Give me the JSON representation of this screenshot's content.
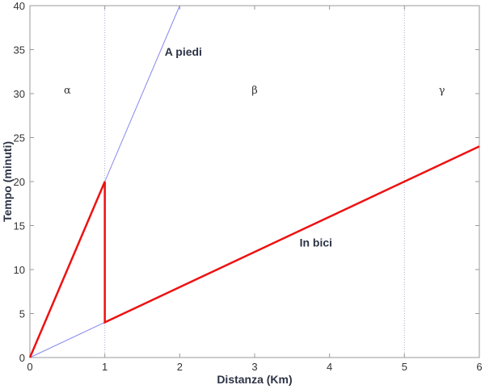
{
  "chart_data": {
    "type": "line",
    "title": "",
    "xlabel": "Distanza (Km)",
    "ylabel": "Tempo (minuti)",
    "xlim": [
      0,
      6
    ],
    "ylim": [
      0,
      40
    ],
    "xticks": [
      0,
      1,
      2,
      3,
      4,
      5,
      6
    ],
    "yticks": [
      0,
      5,
      10,
      15,
      20,
      25,
      30,
      35,
      40
    ],
    "grid": false,
    "series": [
      {
        "name": "A piedi",
        "color": "#8888ee",
        "x": [
          0,
          2
        ],
        "y": [
          0,
          40
        ]
      },
      {
        "name": "In bici",
        "color": "#8888ee",
        "x": [
          0,
          6
        ],
        "y": [
          0,
          24
        ]
      },
      {
        "name": "",
        "color": "#ee1111",
        "x": [
          0,
          1,
          1,
          6
        ],
        "y": [
          0,
          20,
          4,
          24
        ]
      }
    ],
    "vlines": [
      {
        "x": 1,
        "style": "dotted"
      },
      {
        "x": 5,
        "style": "dotted"
      }
    ],
    "annotations": [
      {
        "text": "A piedi",
        "x": 1.8,
        "y": 34.3,
        "bold": true
      },
      {
        "text": "In bici",
        "x": 3.6,
        "y": 12.6,
        "bold": true
      },
      {
        "text": "α",
        "x": 0.5,
        "y": 30
      },
      {
        "text": "β",
        "x": 3.0,
        "y": 30
      },
      {
        "text": "γ",
        "x": 5.5,
        "y": 30
      }
    ]
  }
}
